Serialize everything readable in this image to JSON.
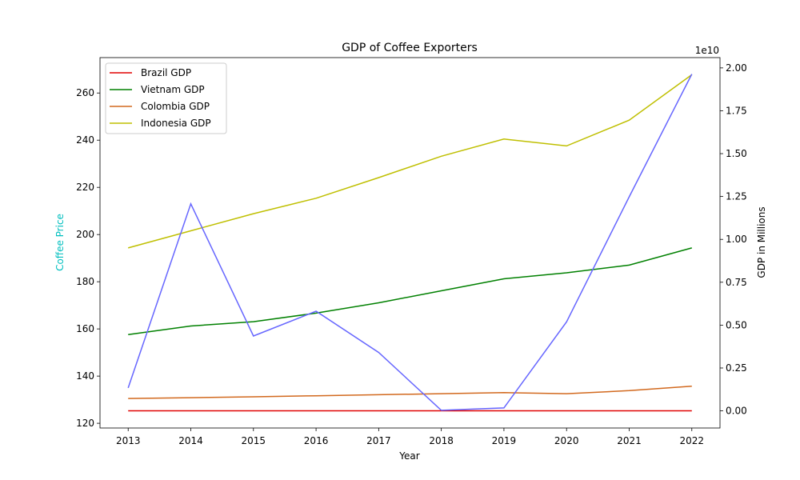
{
  "chart_data": {
    "type": "line",
    "title": "GDP of Coffee Exporters",
    "xlabel": "Year",
    "ylabel_left": "Coffee Price",
    "ylabel_right": "GDP in Millions",
    "right_axis_multiplier": "1e10",
    "x": [
      2013,
      2014,
      2015,
      2016,
      2017,
      2018,
      2019,
      2020,
      2021,
      2022
    ],
    "xlim": [
      2012.55,
      2022.45
    ],
    "ylim_left": [
      118,
      275
    ],
    "ylim_right": [
      -1000000000.0,
      20600000000.0
    ],
    "yticks_left": [
      120,
      140,
      160,
      180,
      200,
      220,
      240,
      260
    ],
    "yticks_right": [
      0,
      2500000000.0,
      5000000000.0,
      7500000000.0,
      10000000000.0,
      12500000000.0,
      15000000000.0,
      17500000000.0,
      20000000000.0
    ],
    "yticks_right_labels": [
      "0.00",
      "0.25",
      "0.50",
      "0.75",
      "1.00",
      "1.25",
      "1.50",
      "1.75",
      "2.00"
    ],
    "coffee_price": {
      "name": "Coffee Price",
      "color": "#6666ff",
      "axis": "left",
      "values": [
        135,
        213,
        157,
        167.5,
        150,
        125.5,
        126.5,
        163,
        216,
        268
      ]
    },
    "series": [
      {
        "name": "Brazil GDP",
        "color": "#e00000",
        "axis": "right",
        "values": [
          2200000.0,
          2400000.0,
          1800000.0,
          1800000.0,
          2060000.0,
          1900000.0,
          1870000.0,
          1450000.0,
          1600000.0,
          1920000.0
        ]
      },
      {
        "name": "Vietnam GDP",
        "color": "#008000",
        "axis": "right",
        "values": [
          4450000000.0,
          4950000000.0,
          5200000000.0,
          5700000000.0,
          6300000000.0,
          7000000000.0,
          7700000000.0,
          8050000000.0,
          8500000000.0,
          9500000000.0
        ]
      },
      {
        "name": "Colombia GDP",
        "color": "#d2691e",
        "axis": "right",
        "values": [
          720000000.0,
          770000000.0,
          820000000.0,
          880000000.0,
          940000000.0,
          1000000000.0,
          1060000000.0,
          1000000000.0,
          1180000000.0,
          1440000000.0
        ]
      },
      {
        "name": "Indonesia GDP",
        "color": "#bfbf00",
        "axis": "right",
        "values": [
          9500000000.0,
          10500000000.0,
          11500000000.0,
          12400000000.0,
          13600000000.0,
          14850000000.0,
          15850000000.0,
          15450000000.0,
          16950000000.0,
          19600000000.0
        ]
      }
    ],
    "legend_placement": "upper-left",
    "grid": false
  }
}
